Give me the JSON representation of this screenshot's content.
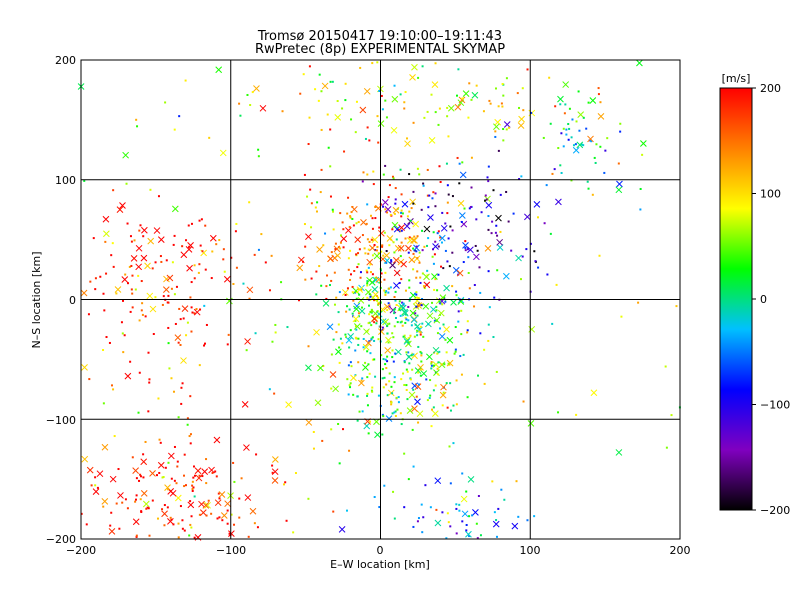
{
  "chart_data": {
    "type": "scatter",
    "title": "Tromsø 20150417  19:10:00–19:11:43",
    "subtitle": "RwPretec (8p) EXPERIMENTAL SKYMAP",
    "xlabel": "E–W location [km]",
    "ylabel": "N–S location [km]",
    "xlim": [
      -200,
      200
    ],
    "ylim": [
      -200,
      200
    ],
    "x_ticks": [
      "−200",
      "−100",
      "0",
      "100",
      "200"
    ],
    "y_ticks": [
      "200",
      "100",
      "0",
      "−100",
      "−200"
    ],
    "grid": true,
    "colorbar": {
      "label": "[m/s]",
      "range": [
        -200,
        200
      ],
      "tick_labels": [
        "200",
        "100",
        "0",
        "−100",
        "−200"
      ],
      "tick_values": [
        200,
        100,
        0,
        -100,
        -200
      ],
      "colormap": [
        "#000000",
        "#8000c0",
        "#0000ff",
        "#00c0ff",
        "#00ff00",
        "#ffff00",
        "#ff8000",
        "#ff0000"
      ]
    },
    "marker_legend": {
      "dot": "small point",
      "cross": "cross"
    },
    "clusters": [
      {
        "region": "center",
        "x": 10,
        "y": -8,
        "spread_x": 25,
        "spread_y": 20,
        "velocity": 20,
        "count": 260
      },
      {
        "region": "north-center",
        "x": -5,
        "y": 45,
        "spread_x": 25,
        "spread_y": 30,
        "velocity": 140,
        "count": 220
      },
      {
        "region": "south-center",
        "x": 15,
        "y": -65,
        "spread_x": 25,
        "spread_y": 25,
        "velocity": 40,
        "count": 200
      },
      {
        "region": "north-east",
        "x": 55,
        "y": 60,
        "spread_x": 30,
        "spread_y": 30,
        "velocity": -110,
        "count": 140
      },
      {
        "region": "west",
        "x": -150,
        "y": 10,
        "spread_x": 30,
        "spread_y": 40,
        "velocity": 195,
        "count": 160
      },
      {
        "region": "south-west",
        "x": -130,
        "y": -165,
        "spread_x": 35,
        "spread_y": 25,
        "velocity": 195,
        "count": 180
      },
      {
        "region": "north-upper",
        "x": 20,
        "y": 165,
        "spread_x": 60,
        "spread_y": 20,
        "velocity": 90,
        "count": 120
      },
      {
        "region": "far-north-east",
        "x": 130,
        "y": 135,
        "spread_x": 15,
        "spread_y": 20,
        "velocity": -20,
        "count": 50
      },
      {
        "region": "south-east",
        "x": 50,
        "y": -180,
        "spread_x": 30,
        "spread_y": 15,
        "velocity": -40,
        "count": 60
      },
      {
        "region": "scattered",
        "x": 0,
        "y": 0,
        "spread_x": 120,
        "spread_y": 120,
        "velocity": 80,
        "count": 220
      }
    ]
  }
}
